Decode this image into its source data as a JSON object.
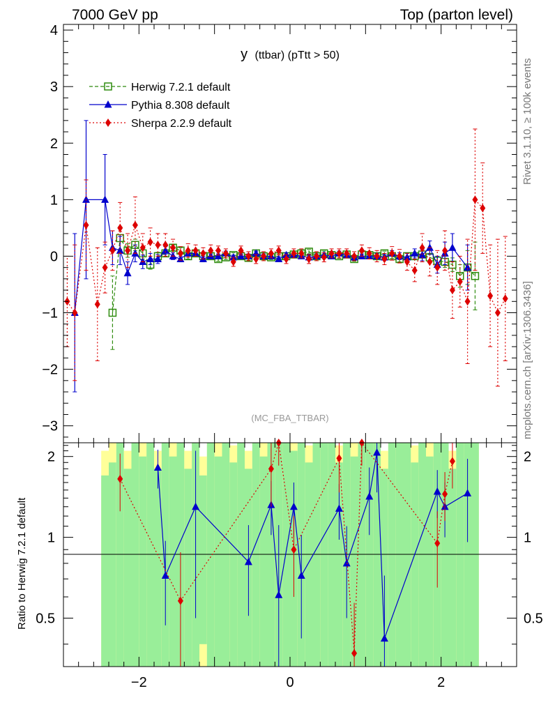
{
  "header": {
    "left": "7000 GeV pp",
    "right": "Top (parton level)"
  },
  "side_labels": {
    "rivet": "Rivet 3.1.10, ≥ 100k events",
    "mcplots": "mcplots.cern.ch [arXiv:1306.3436]"
  },
  "chart_data": [
    {
      "type": "scatter",
      "panel": "main",
      "title_var": "y",
      "title_rest": "(ttbar) (pTtt > 50)",
      "watermark": "(MC_FBA_TTBAR)",
      "xlim": [
        -3.0,
        3.0
      ],
      "ylim": [
        -3.3,
        4.1
      ],
      "yticks": [
        -3,
        -2,
        -1,
        0,
        1,
        2,
        3,
        4
      ],
      "ytick_labels": [
        "−3",
        "−2",
        "−1",
        "0",
        "1",
        "2",
        "3",
        "4"
      ],
      "legend_position": "top-left",
      "series": [
        {
          "name": "Herwig 7.2.1 default",
          "color": "#2e8b0e",
          "marker": "open-square",
          "line": "dashed",
          "x": [
            -2.35,
            -2.25,
            -2.15,
            -2.05,
            -1.95,
            -1.85,
            -1.75,
            -1.65,
            -1.55,
            -1.45,
            -1.35,
            -1.25,
            -1.15,
            -1.05,
            -0.95,
            -0.85,
            -0.75,
            -0.65,
            -0.55,
            -0.45,
            -0.35,
            -0.25,
            -0.15,
            -0.05,
            0.05,
            0.15,
            0.25,
            0.35,
            0.45,
            0.55,
            0.65,
            0.75,
            0.85,
            0.95,
            1.05,
            1.15,
            1.25,
            1.35,
            1.45,
            1.55,
            1.65,
            1.75,
            1.85,
            1.95,
            2.05,
            2.15,
            2.25,
            2.35,
            2.45
          ],
          "y": [
            -1.0,
            0.32,
            0.1,
            0.2,
            0.05,
            -0.15,
            0.0,
            0.05,
            0.15,
            0.1,
            0.0,
            0.05,
            0.0,
            0.0,
            -0.05,
            -0.02,
            0.02,
            0.0,
            -0.03,
            0.05,
            0.0,
            -0.02,
            0.0,
            0.0,
            0.03,
            0.05,
            0.08,
            0.0,
            0.05,
            0.02,
            0.0,
            0.03,
            -0.05,
            0.03,
            0.02,
            0.0,
            0.05,
            0.0,
            -0.05,
            0.0,
            0.0,
            0.03,
            -0.02,
            -0.08,
            -0.1,
            -0.15,
            -0.35,
            -0.2,
            -0.35
          ],
          "err": [
            0.65,
            0.2,
            0.12,
            0.1,
            0.1,
            0.08,
            0.07,
            0.06,
            0.05,
            0.05,
            0.05,
            0.04,
            0.04,
            0.04,
            0.04,
            0.04,
            0.04,
            0.04,
            0.04,
            0.04,
            0.04,
            0.04,
            0.04,
            0.04,
            0.04,
            0.04,
            0.04,
            0.04,
            0.04,
            0.04,
            0.04,
            0.04,
            0.04,
            0.04,
            0.04,
            0.04,
            0.04,
            0.04,
            0.05,
            0.05,
            0.06,
            0.06,
            0.07,
            0.08,
            0.1,
            0.12,
            0.2,
            0.3,
            0.6
          ]
        },
        {
          "name": "Pythia 8.308 default",
          "color": "#0000cc",
          "marker": "filled-triangle",
          "line": "solid",
          "x": [
            -2.85,
            -2.7,
            -2.45,
            -2.35,
            -2.25,
            -2.15,
            -2.05,
            -1.95,
            -1.85,
            -1.75,
            -1.65,
            -1.55,
            -1.45,
            -1.35,
            -1.25,
            -1.15,
            -1.05,
            -0.95,
            -0.85,
            -0.75,
            -0.65,
            -0.55,
            -0.45,
            -0.35,
            -0.25,
            -0.15,
            -0.05,
            0.05,
            0.15,
            0.25,
            0.35,
            0.45,
            0.55,
            0.65,
            0.75,
            0.85,
            0.95,
            1.05,
            1.15,
            1.25,
            1.35,
            1.45,
            1.55,
            1.65,
            1.75,
            1.85,
            1.95,
            2.05,
            2.15,
            2.35
          ],
          "y": [
            -1.0,
            1.0,
            1.0,
            0.15,
            0.1,
            -0.3,
            0.05,
            -0.1,
            -0.05,
            -0.05,
            0.1,
            0.0,
            -0.05,
            0.05,
            0.05,
            -0.05,
            0.0,
            0.0,
            0.05,
            -0.02,
            0.0,
            0.0,
            0.05,
            0.0,
            0.0,
            -0.05,
            0.02,
            0.03,
            0.0,
            -0.02,
            0.0,
            0.02,
            0.0,
            0.05,
            0.02,
            -0.02,
            0.0,
            0.0,
            0.0,
            -0.02,
            0.05,
            0.0,
            -0.02,
            0.05,
            0.02,
            0.15,
            -0.15,
            0.05,
            0.15,
            -0.2
          ],
          "err": [
            1.4,
            1.4,
            0.8,
            0.3,
            0.25,
            0.2,
            0.15,
            0.12,
            0.1,
            0.08,
            0.07,
            0.06,
            0.05,
            0.05,
            0.05,
            0.05,
            0.04,
            0.04,
            0.04,
            0.04,
            0.04,
            0.04,
            0.04,
            0.04,
            0.04,
            0.04,
            0.04,
            0.04,
            0.04,
            0.04,
            0.04,
            0.04,
            0.04,
            0.04,
            0.04,
            0.04,
            0.04,
            0.04,
            0.05,
            0.05,
            0.05,
            0.06,
            0.07,
            0.08,
            0.1,
            0.12,
            0.15,
            0.2,
            0.25,
            0.4
          ]
        },
        {
          "name": "Sherpa 2.2.9 default",
          "color": "#dd0000",
          "marker": "filled-diamond",
          "line": "dotted",
          "x": [
            -2.95,
            -2.85,
            -2.7,
            -2.55,
            -2.45,
            -2.35,
            -2.25,
            -2.15,
            -2.05,
            -1.95,
            -1.85,
            -1.75,
            -1.65,
            -1.55,
            -1.45,
            -1.35,
            -1.25,
            -1.15,
            -1.05,
            -0.95,
            -0.85,
            -0.75,
            -0.65,
            -0.55,
            -0.45,
            -0.35,
            -0.25,
            -0.15,
            -0.05,
            0.05,
            0.15,
            0.25,
            0.35,
            0.45,
            0.55,
            0.65,
            0.75,
            0.85,
            0.95,
            1.05,
            1.15,
            1.25,
            1.35,
            1.45,
            1.55,
            1.65,
            1.75,
            1.85,
            1.95,
            2.05,
            2.15,
            2.25,
            2.35,
            2.45,
            2.55,
            2.65,
            2.75,
            2.85
          ],
          "y": [
            -0.8,
            -1.0,
            0.55,
            -0.85,
            -0.2,
            0.1,
            0.5,
            0.1,
            0.55,
            0.15,
            0.25,
            0.2,
            0.2,
            0.15,
            0.05,
            0.1,
            0.1,
            0.05,
            0.1,
            0.1,
            0.05,
            -0.1,
            0.1,
            0.0,
            -0.05,
            0.0,
            0.05,
            0.1,
            -0.05,
            0.05,
            0.05,
            -0.05,
            0.0,
            -0.02,
            0.05,
            0.05,
            0.05,
            0.0,
            0.1,
            0.05,
            0.0,
            -0.05,
            0.05,
            0.0,
            -0.1,
            -0.25,
            0.15,
            -0.1,
            -0.2,
            0.1,
            -0.6,
            -0.45,
            -0.8,
            1.0,
            0.85,
            -0.7,
            -1.0,
            -0.75
          ],
          "err": [
            0.8,
            1.2,
            0.8,
            1.0,
            0.45,
            0.35,
            0.45,
            0.3,
            0.5,
            0.25,
            0.25,
            0.2,
            0.2,
            0.15,
            0.12,
            0.12,
            0.1,
            0.1,
            0.1,
            0.08,
            0.08,
            0.08,
            0.08,
            0.08,
            0.08,
            0.08,
            0.08,
            0.08,
            0.08,
            0.08,
            0.08,
            0.08,
            0.08,
            0.08,
            0.08,
            0.08,
            0.08,
            0.08,
            0.1,
            0.1,
            0.1,
            0.1,
            0.12,
            0.12,
            0.15,
            0.2,
            0.25,
            0.25,
            0.3,
            0.35,
            0.5,
            0.45,
            1.1,
            1.25,
            0.8,
            0.9,
            1.3,
            1.1
          ]
        }
      ]
    },
    {
      "type": "scatter",
      "panel": "ratio",
      "ylabel": "Ratio to Herwig 7.2.1 default",
      "xlim": [
        -3.0,
        3.0
      ],
      "ylim": [
        0.33,
        2.25
      ],
      "yticks": [
        0.5,
        1,
        2
      ],
      "ytick_labels": [
        "0.5",
        "1",
        "2"
      ],
      "xticks": [
        -2,
        0,
        2
      ],
      "xtick_labels": [
        "−2",
        "0",
        "2"
      ],
      "reference_line": 1,
      "band_colors": {
        "inner": "#99ee99",
        "outer": "#ffff99"
      },
      "bands": {
        "x": [
          -2.45,
          -2.35,
          -2.25,
          -2.15,
          -2.05,
          -1.95,
          -1.85,
          -1.75,
          -1.65,
          -1.55,
          -1.45,
          -1.35,
          -1.25,
          -1.15,
          -1.05,
          -0.95,
          -0.85,
          -0.75,
          -0.65,
          -0.55,
          -0.45,
          -0.35,
          -0.25,
          -0.15,
          -0.05,
          0.05,
          0.15,
          0.25,
          0.35,
          0.45,
          0.55,
          0.65,
          0.75,
          0.85,
          0.95,
          1.05,
          1.15,
          1.25,
          1.35,
          1.45,
          1.55,
          1.65,
          1.75,
          1.85,
          1.95,
          2.05,
          2.15,
          2.25,
          2.35,
          2.45
        ],
        "inner_lo": [
          0.33,
          0.33,
          0.33,
          0.33,
          0.33,
          0.33,
          0.33,
          0.33,
          0.33,
          0.33,
          0.33,
          0.33,
          0.33,
          0.4,
          0.33,
          0.33,
          0.33,
          0.33,
          0.33,
          0.33,
          0.33,
          0.33,
          0.33,
          0.33,
          0.33,
          0.33,
          0.33,
          0.33,
          0.33,
          0.33,
          0.33,
          0.33,
          0.33,
          0.33,
          0.33,
          0.33,
          0.33,
          0.33,
          0.33,
          0.33,
          0.33,
          0.33,
          0.33,
          0.33,
          0.33,
          0.33,
          0.33,
          0.33,
          0.33,
          0.33
        ],
        "inner_hi": [
          1.7,
          1.9,
          2.25,
          1.8,
          2.25,
          2.0,
          2.25,
          1.8,
          2.25,
          2.0,
          2.25,
          1.8,
          2.25,
          1.7,
          2.25,
          2.0,
          2.25,
          1.9,
          2.25,
          1.8,
          2.25,
          2.0,
          2.25,
          2.25,
          2.25,
          2.1,
          2.25,
          1.9,
          2.25,
          2.25,
          2.25,
          1.9,
          2.25,
          2.0,
          2.25,
          2.25,
          2.25,
          1.8,
          2.25,
          2.25,
          2.25,
          1.9,
          2.25,
          2.0,
          2.25,
          2.25,
          1.8,
          2.25,
          2.25,
          2.25
        ],
        "outer_lo": [
          0.33,
          0.33,
          0.33,
          0.33,
          0.33,
          0.33,
          0.33,
          0.33,
          0.33,
          0.33,
          0.33,
          0.33,
          0.33,
          0.33,
          0.33,
          0.33,
          0.33,
          0.33,
          0.33,
          0.33,
          0.33,
          0.33,
          0.33,
          0.33,
          0.33,
          0.33,
          0.33,
          0.33,
          0.33,
          0.33,
          0.33,
          0.33,
          0.33,
          0.33,
          0.33,
          0.33,
          0.33,
          0.33,
          0.33,
          0.33,
          0.33,
          0.33,
          0.33,
          0.33,
          0.33,
          0.33,
          0.33,
          0.33,
          0.33,
          0.33
        ],
        "outer_hi": [
          2.1,
          2.25,
          2.25,
          2.1,
          2.25,
          2.25,
          2.25,
          2.1,
          2.25,
          2.25,
          2.25,
          2.1,
          2.25,
          2.0,
          2.25,
          2.25,
          2.25,
          2.2,
          2.25,
          2.1,
          2.25,
          2.25,
          2.25,
          2.25,
          2.25,
          2.25,
          2.25,
          2.2,
          2.25,
          2.25,
          2.25,
          2.2,
          2.25,
          2.25,
          2.25,
          2.25,
          2.25,
          2.1,
          2.25,
          2.25,
          2.25,
          2.2,
          2.25,
          2.25,
          2.25,
          2.25,
          2.1,
          2.25,
          2.25,
          2.25
        ]
      },
      "series": [
        {
          "name": "Pythia 8.308 default",
          "color": "#0000cc",
          "marker": "filled-triangle",
          "x": [
            -1.75,
            -1.65,
            -1.25,
            -0.55,
            -0.25,
            -0.15,
            0.05,
            0.15,
            0.65,
            0.75,
            1.05,
            1.15,
            1.25,
            1.95,
            2.05,
            2.35
          ],
          "y": [
            1.82,
            0.72,
            1.3,
            0.81,
            1.32,
            0.61,
            1.3,
            0.72,
            1.28,
            0.8,
            1.42,
            2.07,
            0.42,
            1.48,
            1.3,
            1.46
          ],
          "err": [
            0.3,
            0.25,
            0.8,
            0.3,
            0.3,
            0.5,
            0.3,
            0.3,
            0.3,
            0.3,
            0.4,
            0.6,
            0.3,
            0.3,
            0.3,
            0.5
          ]
        },
        {
          "name": "Sherpa 2.2.9 default",
          "color": "#dd0000",
          "marker": "filled-diamond",
          "x": [
            -2.25,
            -1.45,
            -0.25,
            -0.15,
            0.05,
            0.65,
            0.85,
            0.95,
            1.95,
            2.05,
            2.15
          ],
          "y": [
            1.65,
            0.58,
            1.8,
            2.25,
            0.9,
            1.97,
            0.37,
            2.25,
            0.95,
            1.45,
            1.92
          ],
          "err": [
            0.4,
            0.3,
            0.5,
            0.4,
            0.3,
            0.5,
            0.2,
            0.4,
            0.3,
            0.3,
            0.4
          ]
        }
      ]
    }
  ]
}
